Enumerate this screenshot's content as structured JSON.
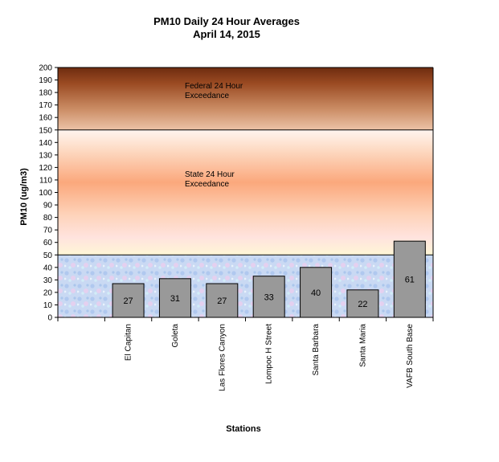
{
  "chart_data": {
    "type": "bar",
    "title": "PM10 Daily 24 Hour Averages",
    "subtitle": "April 14, 2015",
    "xlabel": "Stations",
    "ylabel": "PM10 (ug/m3)",
    "ylim": [
      0,
      200
    ],
    "ytick_step": 10,
    "categories": [
      "El Capitan",
      "Goleta",
      "Las Flores Canyon",
      "Lompoc H Street",
      "Santa Barbara",
      "Santa Maria",
      "VAFB South Base"
    ],
    "values": [
      27,
      31,
      27,
      33,
      40,
      22,
      61
    ],
    "data_labels": [
      "27",
      "31",
      "27",
      "33",
      "40",
      "22",
      "61"
    ],
    "bar_color": "#999999",
    "grid": false,
    "legend": "none",
    "bands": [
      {
        "from": 0,
        "to": 50,
        "style": "blue-texture"
      },
      {
        "from": 50,
        "to": 150,
        "label": "State 24 Hour Exceedance",
        "lines": [
          "State 24 Hour",
          "Exceedance"
        ],
        "style": "orange-gradient"
      },
      {
        "from": 150,
        "to": 200,
        "label": "Federal 24 Hour Exceedance",
        "lines": [
          "Federal 24 Hour",
          "Exceedance"
        ],
        "style": "brown-gradient"
      }
    ]
  }
}
